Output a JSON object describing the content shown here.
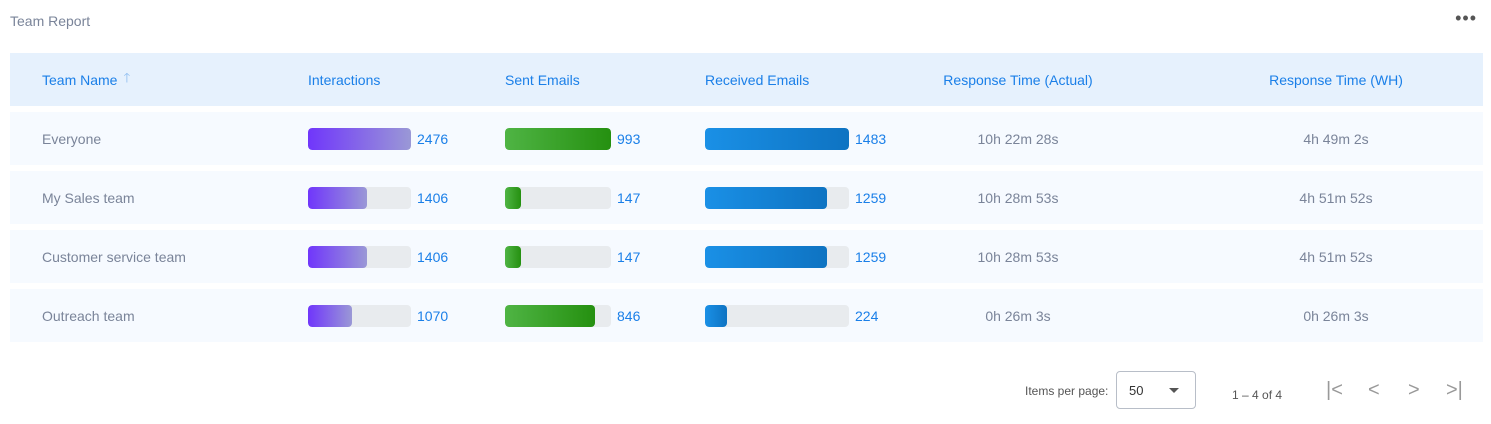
{
  "title": "Team Report",
  "menu_icon": "more-horizontal-icon",
  "columns": [
    "Team Name",
    "Interactions",
    "Sent Emails",
    "Received Emails",
    "Response Time (Actual)",
    "Response Time (WH)"
  ],
  "sort_icon": "arrow-up-icon",
  "colors": {
    "interactions": "#7036fb",
    "sent": "#4fb444",
    "received": "#1a90e6",
    "header_bg": "#e6f1fd",
    "accent": "#1a7fe8"
  },
  "rows": [
    {
      "team": "Everyone",
      "interactions": "2476",
      "interactions_frac": 1.0,
      "sent": "993",
      "sent_frac": 1.0,
      "received": "1483",
      "received_frac": 1.0,
      "rt_actual": "10h 22m 28s",
      "rt_wh": "4h 49m 2s"
    },
    {
      "team": "My Sales team",
      "interactions": "1406",
      "interactions_frac": 0.568,
      "sent": "147",
      "sent_frac": 0.148,
      "received": "1259",
      "received_frac": 0.849,
      "rt_actual": "10h 28m 53s",
      "rt_wh": "4h 51m 52s"
    },
    {
      "team": "Customer service team",
      "interactions": "1406",
      "interactions_frac": 0.568,
      "sent": "147",
      "sent_frac": 0.148,
      "received": "1259",
      "received_frac": 0.849,
      "rt_actual": "10h 28m 53s",
      "rt_wh": "4h 51m 52s"
    },
    {
      "team": "Outreach team",
      "interactions": "1070",
      "interactions_frac": 0.432,
      "sent": "846",
      "sent_frac": 0.852,
      "received": "224",
      "received_frac": 0.151,
      "rt_actual": "0h 26m 3s",
      "rt_wh": "0h 26m 3s"
    }
  ],
  "pager": {
    "items_per_page_label": "Items per page:",
    "items_per_page": "50",
    "range": "1 – 4 of 4",
    "first": "|<",
    "prev": "<",
    "next": ">",
    "last": ">|"
  }
}
